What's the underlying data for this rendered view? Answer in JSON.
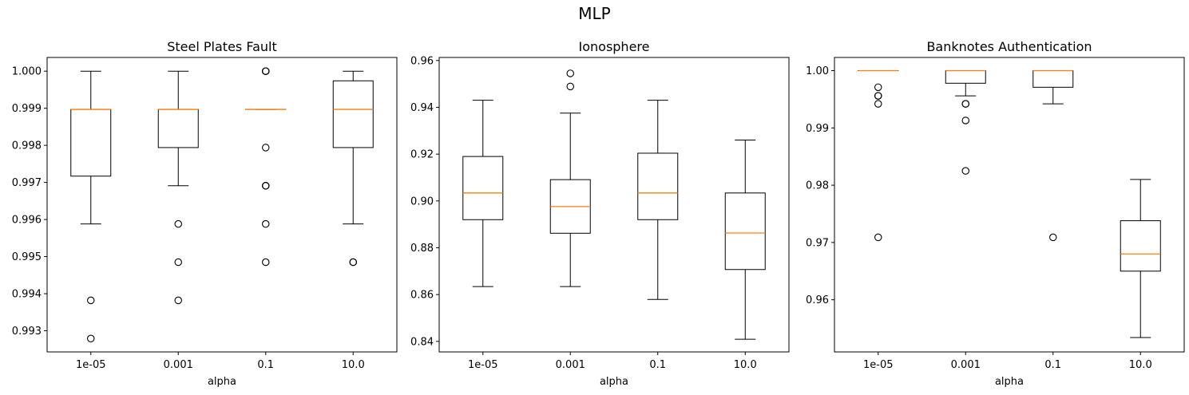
{
  "figure": {
    "suptitle": "MLP"
  },
  "colors": {
    "box": "#000000",
    "median": "#ff7f0e",
    "background": "#ffffff"
  },
  "chart_data": [
    {
      "type": "box",
      "title": "Steel Plates Fault",
      "xlabel": "alpha",
      "ylabel": "",
      "categories": [
        "1e-05",
        "0.001",
        "0.1",
        "10.0"
      ],
      "ylim": [
        0.99243,
        1.00037
      ],
      "yticks": [
        0.993,
        0.994,
        0.995,
        0.996,
        0.997,
        0.998,
        0.999,
        1.0
      ],
      "ytick_labels": [
        "0.993",
        "0.994",
        "0.995",
        "0.996",
        "0.997",
        "0.998",
        "0.999",
        "1.000"
      ],
      "boxes": [
        {
          "whisker_low": 0.99588,
          "q1": 0.99717,
          "median": 0.99897,
          "q3": 0.99897,
          "whisker_high": 1.0,
          "fliers": [
            0.99382,
            0.99279
          ]
        },
        {
          "whisker_low": 0.99691,
          "q1": 0.99794,
          "median": 0.99897,
          "q3": 0.99897,
          "whisker_high": 1.0,
          "fliers": [
            0.99588,
            0.99485,
            0.99382
          ]
        },
        {
          "whisker_low": 0.99897,
          "q1": 0.99897,
          "median": 0.99897,
          "q3": 0.99897,
          "whisker_high": 0.99897,
          "fliers": [
            1.0,
            1.0,
            1.0,
            0.99794,
            0.99691,
            0.99691,
            0.99691,
            0.99588,
            0.99485
          ]
        },
        {
          "whisker_low": 0.99588,
          "q1": 0.99794,
          "median": 0.99897,
          "q3": 0.99974,
          "whisker_high": 1.0,
          "fliers": [
            0.99485,
            0.99485
          ]
        }
      ]
    },
    {
      "type": "box",
      "title": "Ionosphere",
      "xlabel": "alpha",
      "ylabel": "",
      "categories": [
        "1e-05",
        "0.001",
        "0.1",
        "10.0"
      ],
      "ylim": [
        0.8355,
        0.9613
      ],
      "yticks": [
        0.84,
        0.86,
        0.88,
        0.9,
        0.92,
        0.94,
        0.96
      ],
      "ytick_labels": [
        "0.84",
        "0.86",
        "0.88",
        "0.90",
        "0.92",
        "0.94",
        "0.96"
      ],
      "boxes": [
        {
          "whisker_low": 0.8634,
          "q1": 0.892,
          "median": 0.9034,
          "q3": 0.919,
          "whisker_high": 0.943,
          "fliers": []
        },
        {
          "whisker_low": 0.8634,
          "q1": 0.8862,
          "median": 0.8976,
          "q3": 0.9091,
          "whisker_high": 0.9375,
          "fliers": [
            0.9545,
            0.9489
          ]
        },
        {
          "whisker_low": 0.8579,
          "q1": 0.892,
          "median": 0.9034,
          "q3": 0.9204,
          "whisker_high": 0.943,
          "fliers": []
        },
        {
          "whisker_low": 0.8409,
          "q1": 0.8707,
          "median": 0.8863,
          "q3": 0.9034,
          "whisker_high": 0.926,
          "fliers": []
        }
      ]
    },
    {
      "type": "box",
      "title": "Banknotes Authentication",
      "xlabel": "alpha",
      "ylabel": "",
      "categories": [
        "1e-05",
        "0.001",
        "0.1",
        "10.0"
      ],
      "ylim": [
        0.9509,
        1.0023
      ],
      "yticks": [
        0.96,
        0.97,
        0.98,
        0.99,
        1.0
      ],
      "ytick_labels": [
        "0.96",
        "0.97",
        "0.98",
        "0.99",
        "1.00"
      ],
      "boxes": [
        {
          "whisker_low": 1.0,
          "q1": 1.0,
          "median": 1.0,
          "q3": 1.0,
          "whisker_high": 1.0,
          "fliers": [
            0.9971,
            0.9956,
            0.9956,
            0.9942,
            0.9709
          ]
        },
        {
          "whisker_low": 0.9956,
          "q1": 0.9978,
          "median": 1.0,
          "q3": 1.0,
          "whisker_high": 1.0,
          "fliers": [
            0.9942,
            0.9942,
            0.9913,
            0.9825
          ]
        },
        {
          "whisker_low": 0.9942,
          "q1": 0.9971,
          "median": 1.0,
          "q3": 1.0,
          "whisker_high": 1.0,
          "fliers": [
            0.9709
          ]
        },
        {
          "whisker_low": 0.9534,
          "q1": 0.965,
          "median": 0.968,
          "q3": 0.9738,
          "whisker_high": 0.981,
          "fliers": []
        }
      ]
    }
  ]
}
